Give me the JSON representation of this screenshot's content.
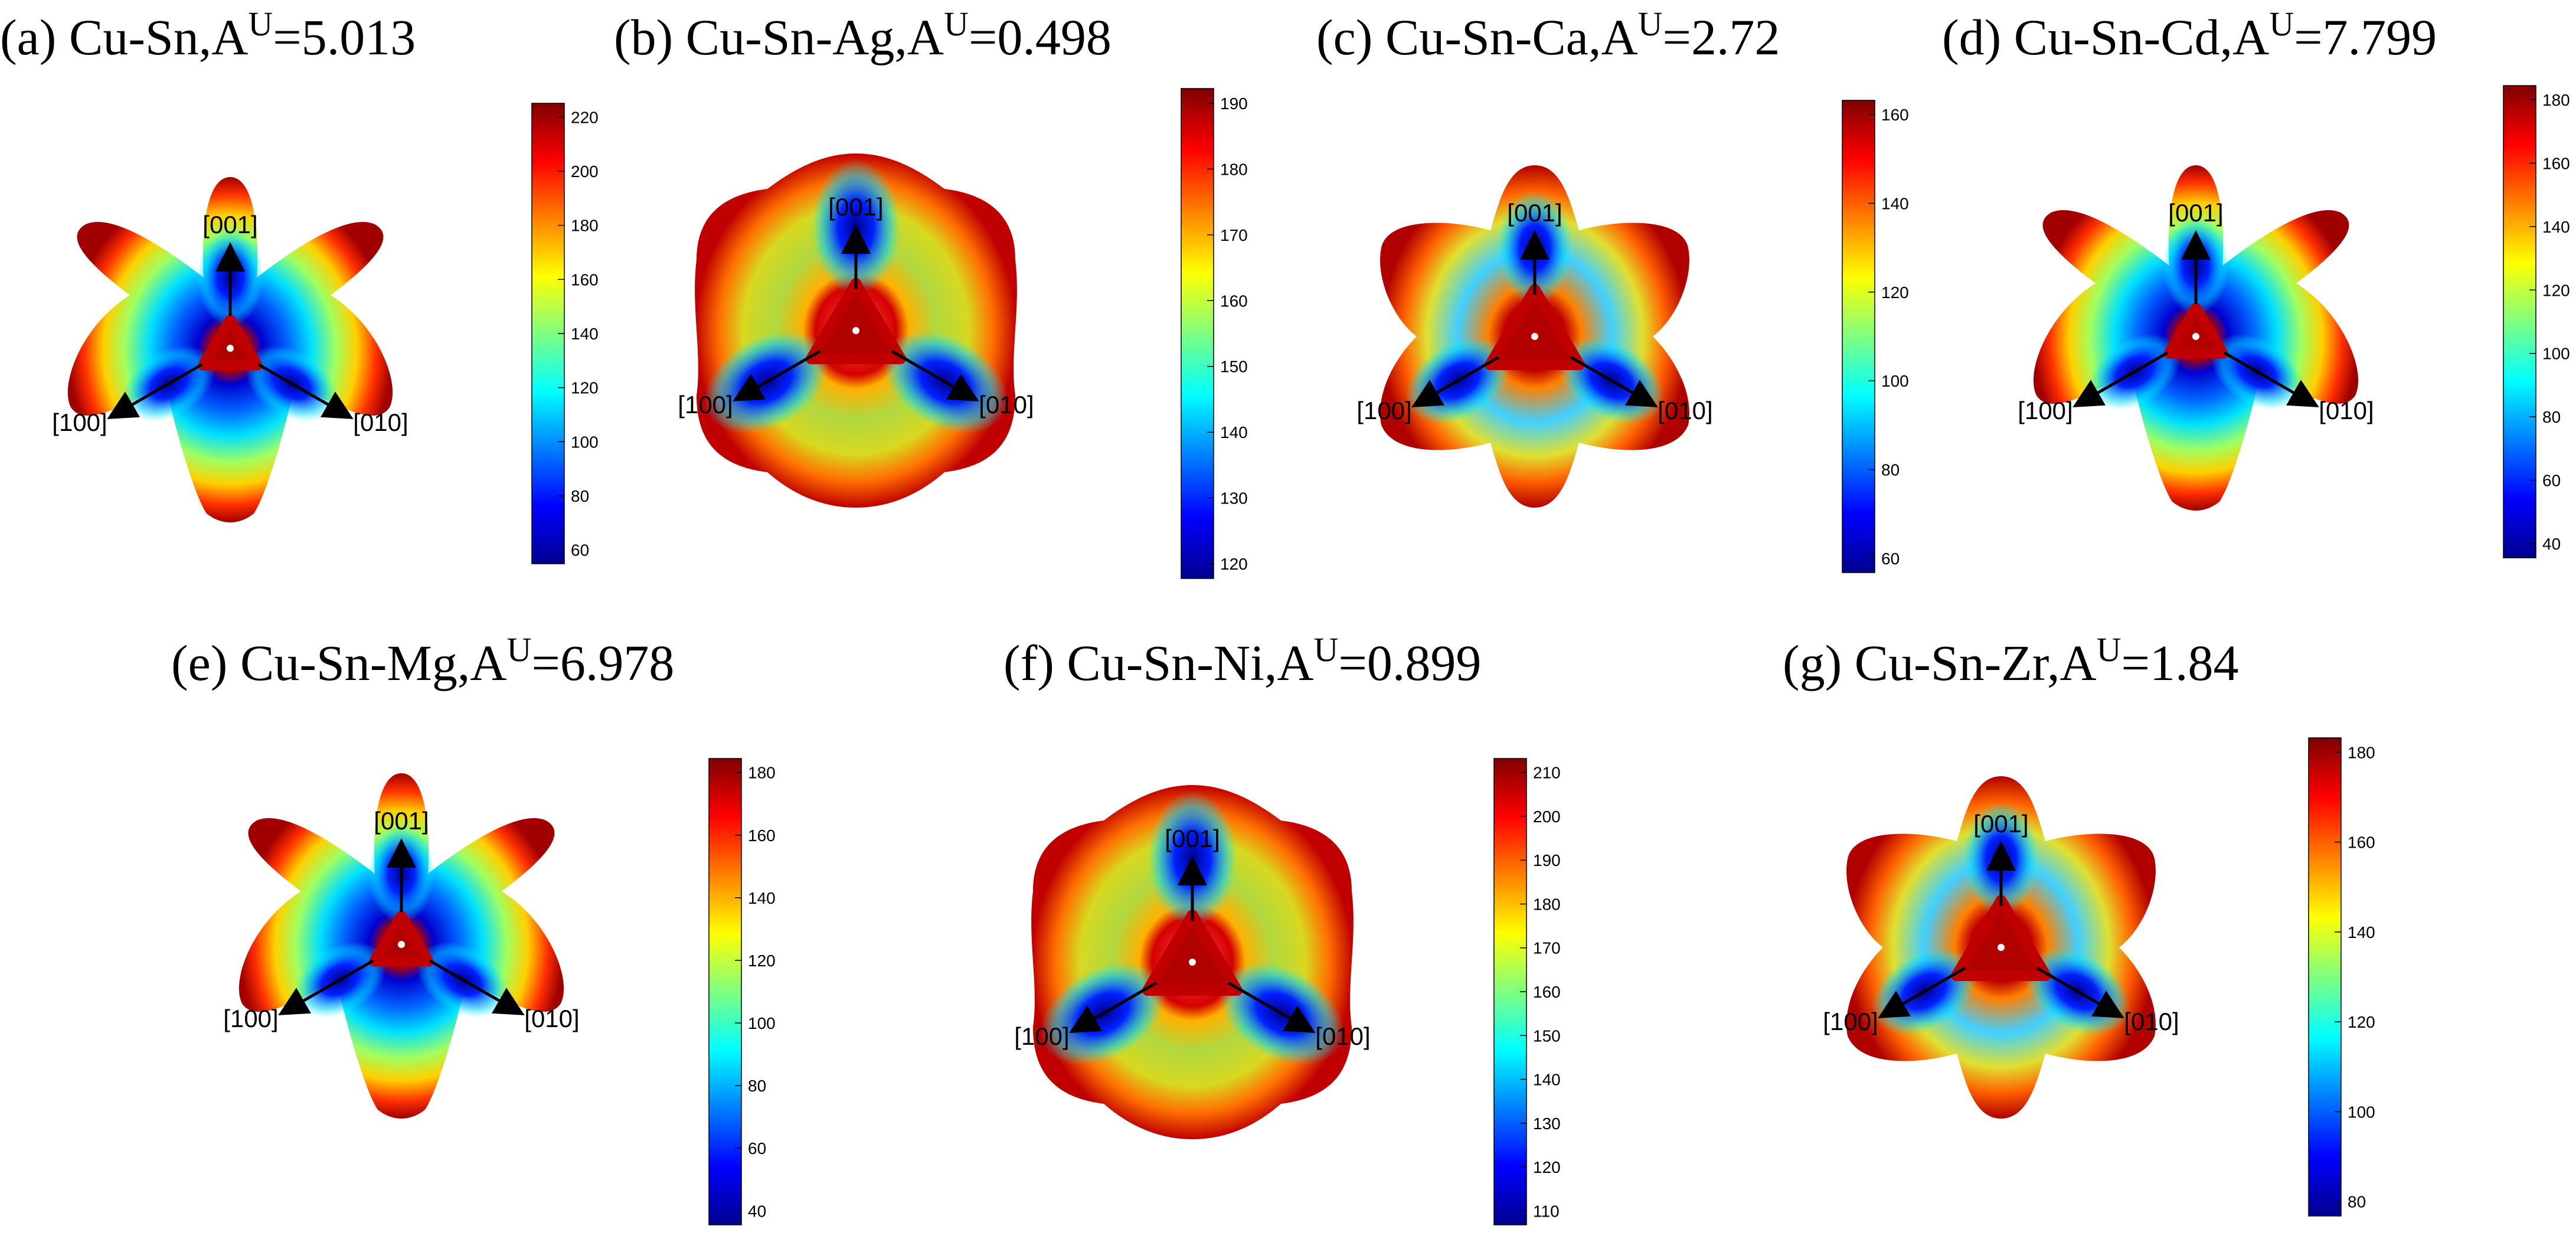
{
  "panels": [
    {
      "id": "a",
      "letter": "(a)",
      "system": "Cu-Sn,",
      "au_base": "A",
      "au_sup": "U",
      "au_value": "=5.013",
      "shape": "star",
      "ticks": [
        "220",
        "200",
        "180",
        "160",
        "140",
        "120",
        "100",
        "80",
        "60"
      ],
      "labels": {
        "z": "[001]",
        "x": "[100]",
        "y": "[010]"
      }
    },
    {
      "id": "b",
      "letter": "(b)",
      "system": "Cu-Sn-Ag,",
      "au_base": "A",
      "au_sup": "U",
      "au_value": "=0.498",
      "shape": "blob",
      "ticks": [
        "190",
        "180",
        "170",
        "160",
        "150",
        "140",
        "130",
        "120"
      ],
      "labels": {
        "z": "[001]",
        "x": "[100]",
        "y": "[010]"
      }
    },
    {
      "id": "c",
      "letter": "(c)",
      "system": "Cu-Sn-Ca,",
      "au_base": "A",
      "au_sup": "U",
      "au_value": "=2.72",
      "shape": "mid",
      "ticks": [
        "160",
        "140",
        "120",
        "100",
        "80",
        "60"
      ],
      "labels": {
        "z": "[001]",
        "x": "[100]",
        "y": "[010]"
      }
    },
    {
      "id": "d",
      "letter": "(d)",
      "system": "Cu-Sn-Cd,",
      "au_base": "A",
      "au_sup": "U",
      "au_value": "=7.799",
      "shape": "star",
      "ticks": [
        "180",
        "160",
        "140",
        "120",
        "100",
        "80",
        "60",
        "40"
      ],
      "labels": {
        "z": "[001]",
        "x": "[100]",
        "y": "[010]"
      }
    },
    {
      "id": "e",
      "letter": "(e)",
      "system": "Cu-Sn-Mg,",
      "au_base": "A",
      "au_sup": "U",
      "au_value": "=6.978",
      "shape": "star",
      "ticks": [
        "180",
        "160",
        "140",
        "120",
        "100",
        "80",
        "60",
        "40"
      ],
      "labels": {
        "z": "[001]",
        "x": "[100]",
        "y": "[010]"
      }
    },
    {
      "id": "f",
      "letter": "(f)",
      "system": "Cu-Sn-Ni,",
      "au_base": "A",
      "au_sup": "U",
      "au_value": "=0.899",
      "shape": "blob",
      "ticks": [
        "210",
        "200",
        "190",
        "180",
        "170",
        "160",
        "150",
        "140",
        "130",
        "120",
        "110"
      ],
      "labels": {
        "z": "[001]",
        "x": "[100]",
        "y": "[010]"
      }
    },
    {
      "id": "g",
      "letter": "(g)",
      "system": "Cu-Sn-Zr,",
      "au_base": "A",
      "au_sup": "U",
      "au_value": "=1.84",
      "shape": "mid",
      "ticks": [
        "180",
        "160",
        "140",
        "120",
        "100",
        "80"
      ],
      "labels": {
        "z": "[001]",
        "x": "[100]",
        "y": "[010]"
      }
    }
  ],
  "colormap": "jet",
  "colors": {
    "dark_red": "#800000",
    "red": "#ff0000",
    "yellow": "#ffff00",
    "cyan": "#00ffff",
    "blue": "#0000ff",
    "dark_blue": "#00008f"
  }
}
